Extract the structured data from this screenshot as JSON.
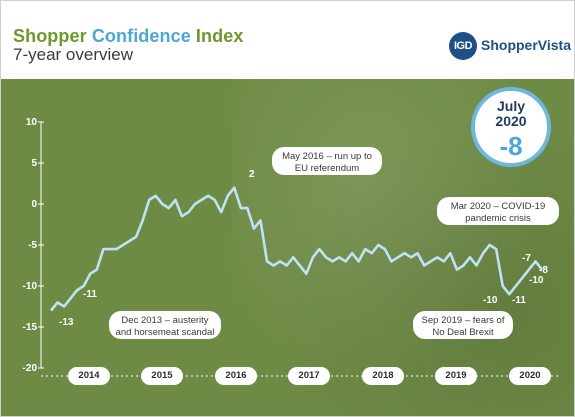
{
  "header": {
    "title_part1": "Shopper ",
    "title_part2": "Confidence",
    "title_part3": " Index",
    "subtitle": "7-year overview",
    "logo_mark": "IGD",
    "logo_text": "ShopperVista"
  },
  "badge": {
    "label_month": "July",
    "label_year": "2020",
    "value": "-8"
  },
  "callouts": [
    {
      "text": "May 2016 – run up to EU referendum"
    },
    {
      "text": "Mar 2020 – COVID-19 pandemic crisis"
    },
    {
      "text": "Dec 2013 – austerity and horsemeat scandal"
    },
    {
      "text": "Sep 2019 – fears of No Deal Brexit"
    }
  ],
  "colors": {
    "green": "#6c9a2a",
    "blue": "#4aa8d8",
    "line": "#bfe3f6",
    "background": "#6e8b45"
  },
  "chart_data": {
    "type": "line",
    "title": "Shopper Confidence Index",
    "subtitle": "7-year overview",
    "ylim": [
      -20,
      10
    ],
    "yticks": [
      "10",
      "5",
      "0",
      "-5",
      "-10",
      "-15",
      "-20"
    ],
    "x_ticks": [
      "2014",
      "2015",
      "2016",
      "2017",
      "2018",
      "2019",
      "2020"
    ],
    "point_labels": [
      {
        "text": "-13",
        "x": 2013.92,
        "y": -13
      },
      {
        "text": "-11",
        "x": 2014.1,
        "y": -11
      },
      {
        "text": "2",
        "x": 2016.2,
        "y": 2
      },
      {
        "text": "-10",
        "x": 2019.75,
        "y": -10
      },
      {
        "text": "-11",
        "x": 2020.05,
        "y": -11
      },
      {
        "text": "-10",
        "x": 2020.15,
        "y": -10
      },
      {
        "text": "-7",
        "x": 2020.1,
        "y": -7
      },
      {
        "text": "-8",
        "x": 2020.25,
        "y": -8
      }
    ],
    "x": [
      2013.0,
      2013.1,
      2013.2,
      2013.3,
      2013.4,
      2013.5,
      2013.6,
      2013.7,
      2013.8,
      2013.9,
      2014.0,
      2014.1,
      2014.2,
      2014.3,
      2014.4,
      2014.5,
      2014.6,
      2014.7,
      2014.8,
      2014.9,
      2015.0,
      2015.1,
      2015.2,
      2015.3,
      2015.4,
      2015.5,
      2015.6,
      2015.7,
      2015.8,
      2015.9,
      2016.0,
      2016.1,
      2016.2,
      2016.3,
      2016.4,
      2016.5,
      2016.6,
      2016.7,
      2016.8,
      2016.9,
      2017.0,
      2017.1,
      2017.2,
      2017.3,
      2017.4,
      2017.5,
      2017.6,
      2017.7,
      2017.8,
      2017.9,
      2018.0,
      2018.1,
      2018.2,
      2018.3,
      2018.4,
      2018.5,
      2018.6,
      2018.7,
      2018.8,
      2018.9,
      2019.0,
      2019.1,
      2019.2,
      2019.3,
      2019.4,
      2019.5,
      2019.6,
      2019.7,
      2019.8,
      2019.9,
      2020.0,
      2020.1,
      2020.2,
      2020.3,
      2020.4,
      2020.5
    ],
    "series": [
      {
        "values": [
          -13,
          -12,
          -12.5,
          -11.5,
          -10.5,
          -10,
          -8.5,
          -8,
          -5.5,
          -5.5,
          -5.5,
          -5,
          -4.5,
          -4,
          -2,
          0.5,
          1,
          0,
          -0.5,
          0.5,
          -1.5,
          -1,
          0,
          0.5,
          1,
          0.5,
          -1,
          1,
          2,
          -0.5,
          -0.5,
          -3,
          -2,
          -7,
          -7.5,
          -7,
          -7.5,
          -6.5,
          -7.5,
          -8.5,
          -6.5,
          -5.5,
          -6.5,
          -7,
          -6.5,
          -7,
          -6,
          -7,
          -5.5,
          -6,
          -5,
          -5.5,
          -7,
          -6.5,
          -6,
          -6.5,
          -6,
          -7.5,
          -7,
          -6.5,
          -7,
          -6,
          -8,
          -7.5,
          -6.5,
          -7.5,
          -6,
          -5,
          -5.5,
          -10,
          -11,
          -10,
          -9,
          -8,
          -7,
          -8
        ]
      }
    ]
  }
}
